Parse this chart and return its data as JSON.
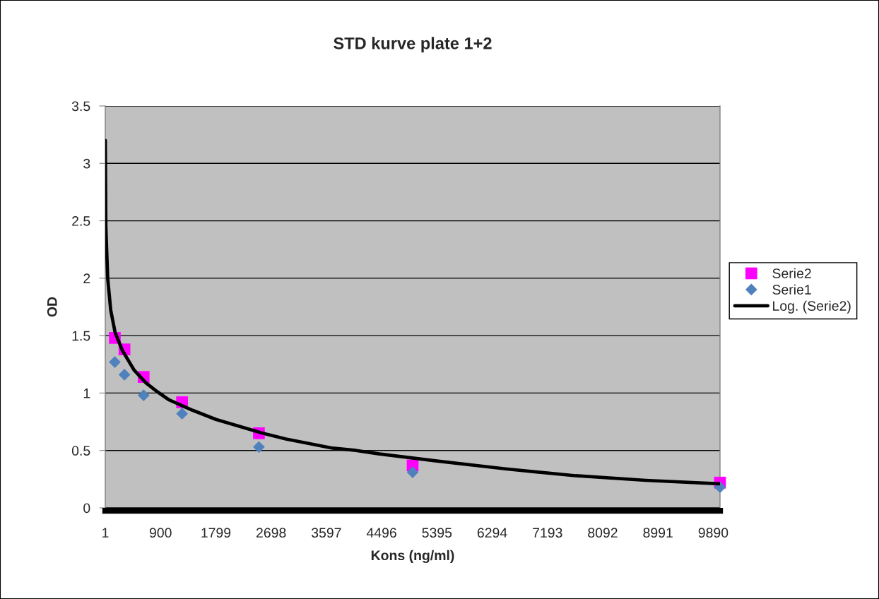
{
  "chart_data": {
    "type": "scatter",
    "title": "STD kurve plate 1+2",
    "xlabel": "Kons (ng/ml)",
    "ylabel": "OD",
    "xlim": [
      1,
      10000
    ],
    "xticks": [
      1,
      900,
      1799,
      2698,
      3597,
      4496,
      5395,
      6294,
      7193,
      8092,
      8991,
      9890
    ],
    "ylim": [
      0,
      3.5
    ],
    "yticks": [
      0,
      0.5,
      1,
      1.5,
      2,
      2.5,
      3,
      3.5
    ],
    "grid": "y",
    "legend": "right",
    "series": [
      {
        "name": "Serie2",
        "color": "#ff00ff",
        "marker": "square",
        "x": [
          156,
          313,
          625,
          1250,
          2500,
          5000,
          10000
        ],
        "values": [
          1.48,
          1.38,
          1.14,
          0.92,
          0.65,
          0.37,
          0.22
        ]
      },
      {
        "name": "Serie1",
        "color": "#4f81bd",
        "marker": "diamond",
        "x": [
          156,
          313,
          625,
          1250,
          2500,
          5000,
          10000
        ],
        "values": [
          1.27,
          1.16,
          0.98,
          0.82,
          0.53,
          0.31,
          0.18
        ]
      },
      {
        "name": "Log. (Serie2)",
        "type": "line",
        "color": "#000000",
        "marker": "none",
        "line_style": "solid",
        "x": [
          1,
          10,
          40,
          90,
          160,
          280,
          470,
          660,
          850,
          1040,
          1420,
          1800,
          2180,
          2560,
          2940,
          3320,
          3700,
          4080,
          4460,
          5370,
          6510,
          7650,
          8790,
          10000
        ],
        "values": [
          3.2,
          2.45,
          2.0,
          1.72,
          1.53,
          1.37,
          1.2,
          1.09,
          1.01,
          0.94,
          0.85,
          0.77,
          0.71,
          0.65,
          0.6,
          0.56,
          0.52,
          0.5,
          0.47,
          0.41,
          0.34,
          0.28,
          0.24,
          0.21
        ]
      }
    ]
  }
}
